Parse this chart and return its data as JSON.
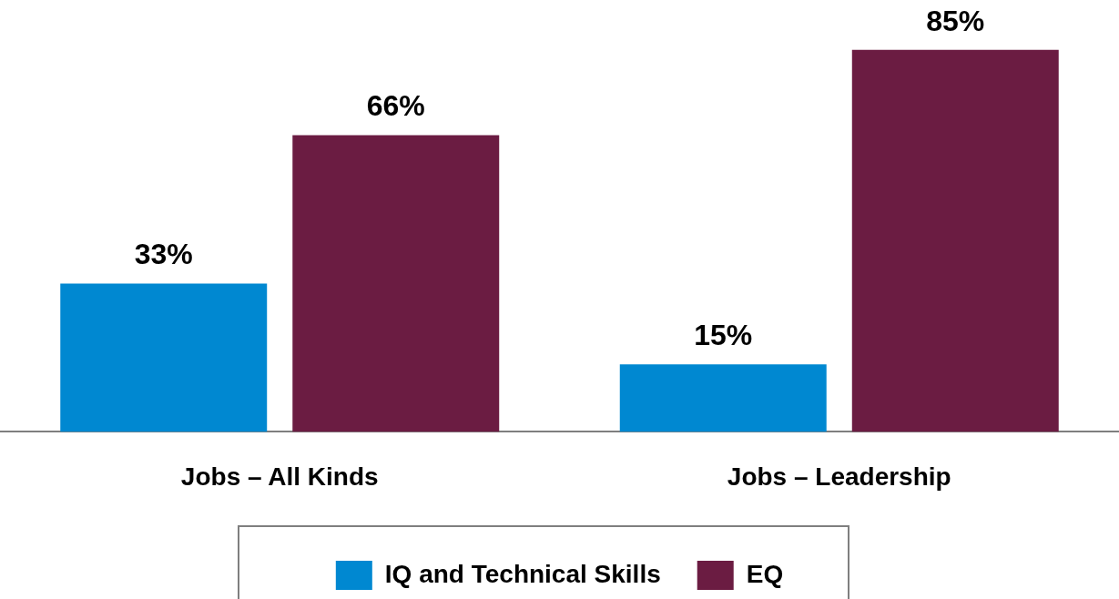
{
  "chart_data": {
    "type": "bar",
    "categories": [
      "Jobs – All Kinds",
      "Jobs – Leadership"
    ],
    "series": [
      {
        "name": "IQ and Technical Skills",
        "color": "#0088d1",
        "values": [
          33,
          15
        ],
        "value_labels": [
          "33%",
          "15%"
        ]
      },
      {
        "name": "EQ",
        "color": "#6b1c42",
        "values": [
          66,
          85
        ],
        "value_labels": [
          "66%",
          "85%"
        ]
      }
    ],
    "legend": "bottom",
    "grid": false
  }
}
